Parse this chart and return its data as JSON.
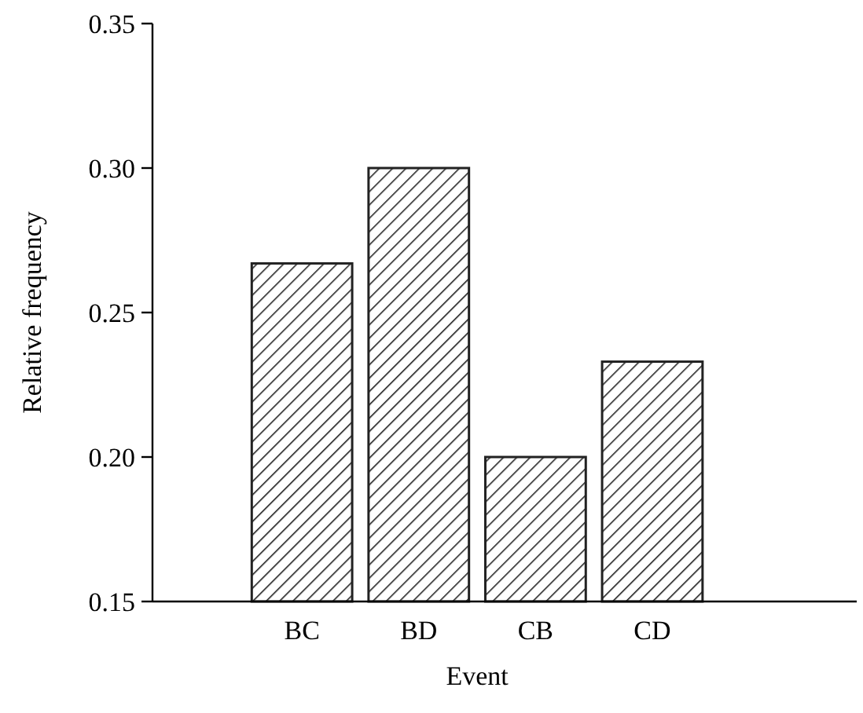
{
  "chart_data": {
    "type": "bar",
    "xlabel": "Event",
    "ylabel": "Relative frequency",
    "categories": [
      "BC",
      "BD",
      "CB",
      "CD"
    ],
    "values": [
      0.267,
      0.3,
      0.2,
      0.233
    ],
    "color": "#222222",
    "ylim": [
      0.15,
      0.35
    ],
    "yticks": [
      {
        "value": 0.15,
        "label": "0.15"
      },
      {
        "value": 0.2,
        "label": "0.20"
      },
      {
        "value": 0.25,
        "label": "0.25"
      },
      {
        "value": 0.3,
        "label": "0.30"
      },
      {
        "value": 0.35,
        "label": "0.35"
      }
    ],
    "grid": false
  }
}
